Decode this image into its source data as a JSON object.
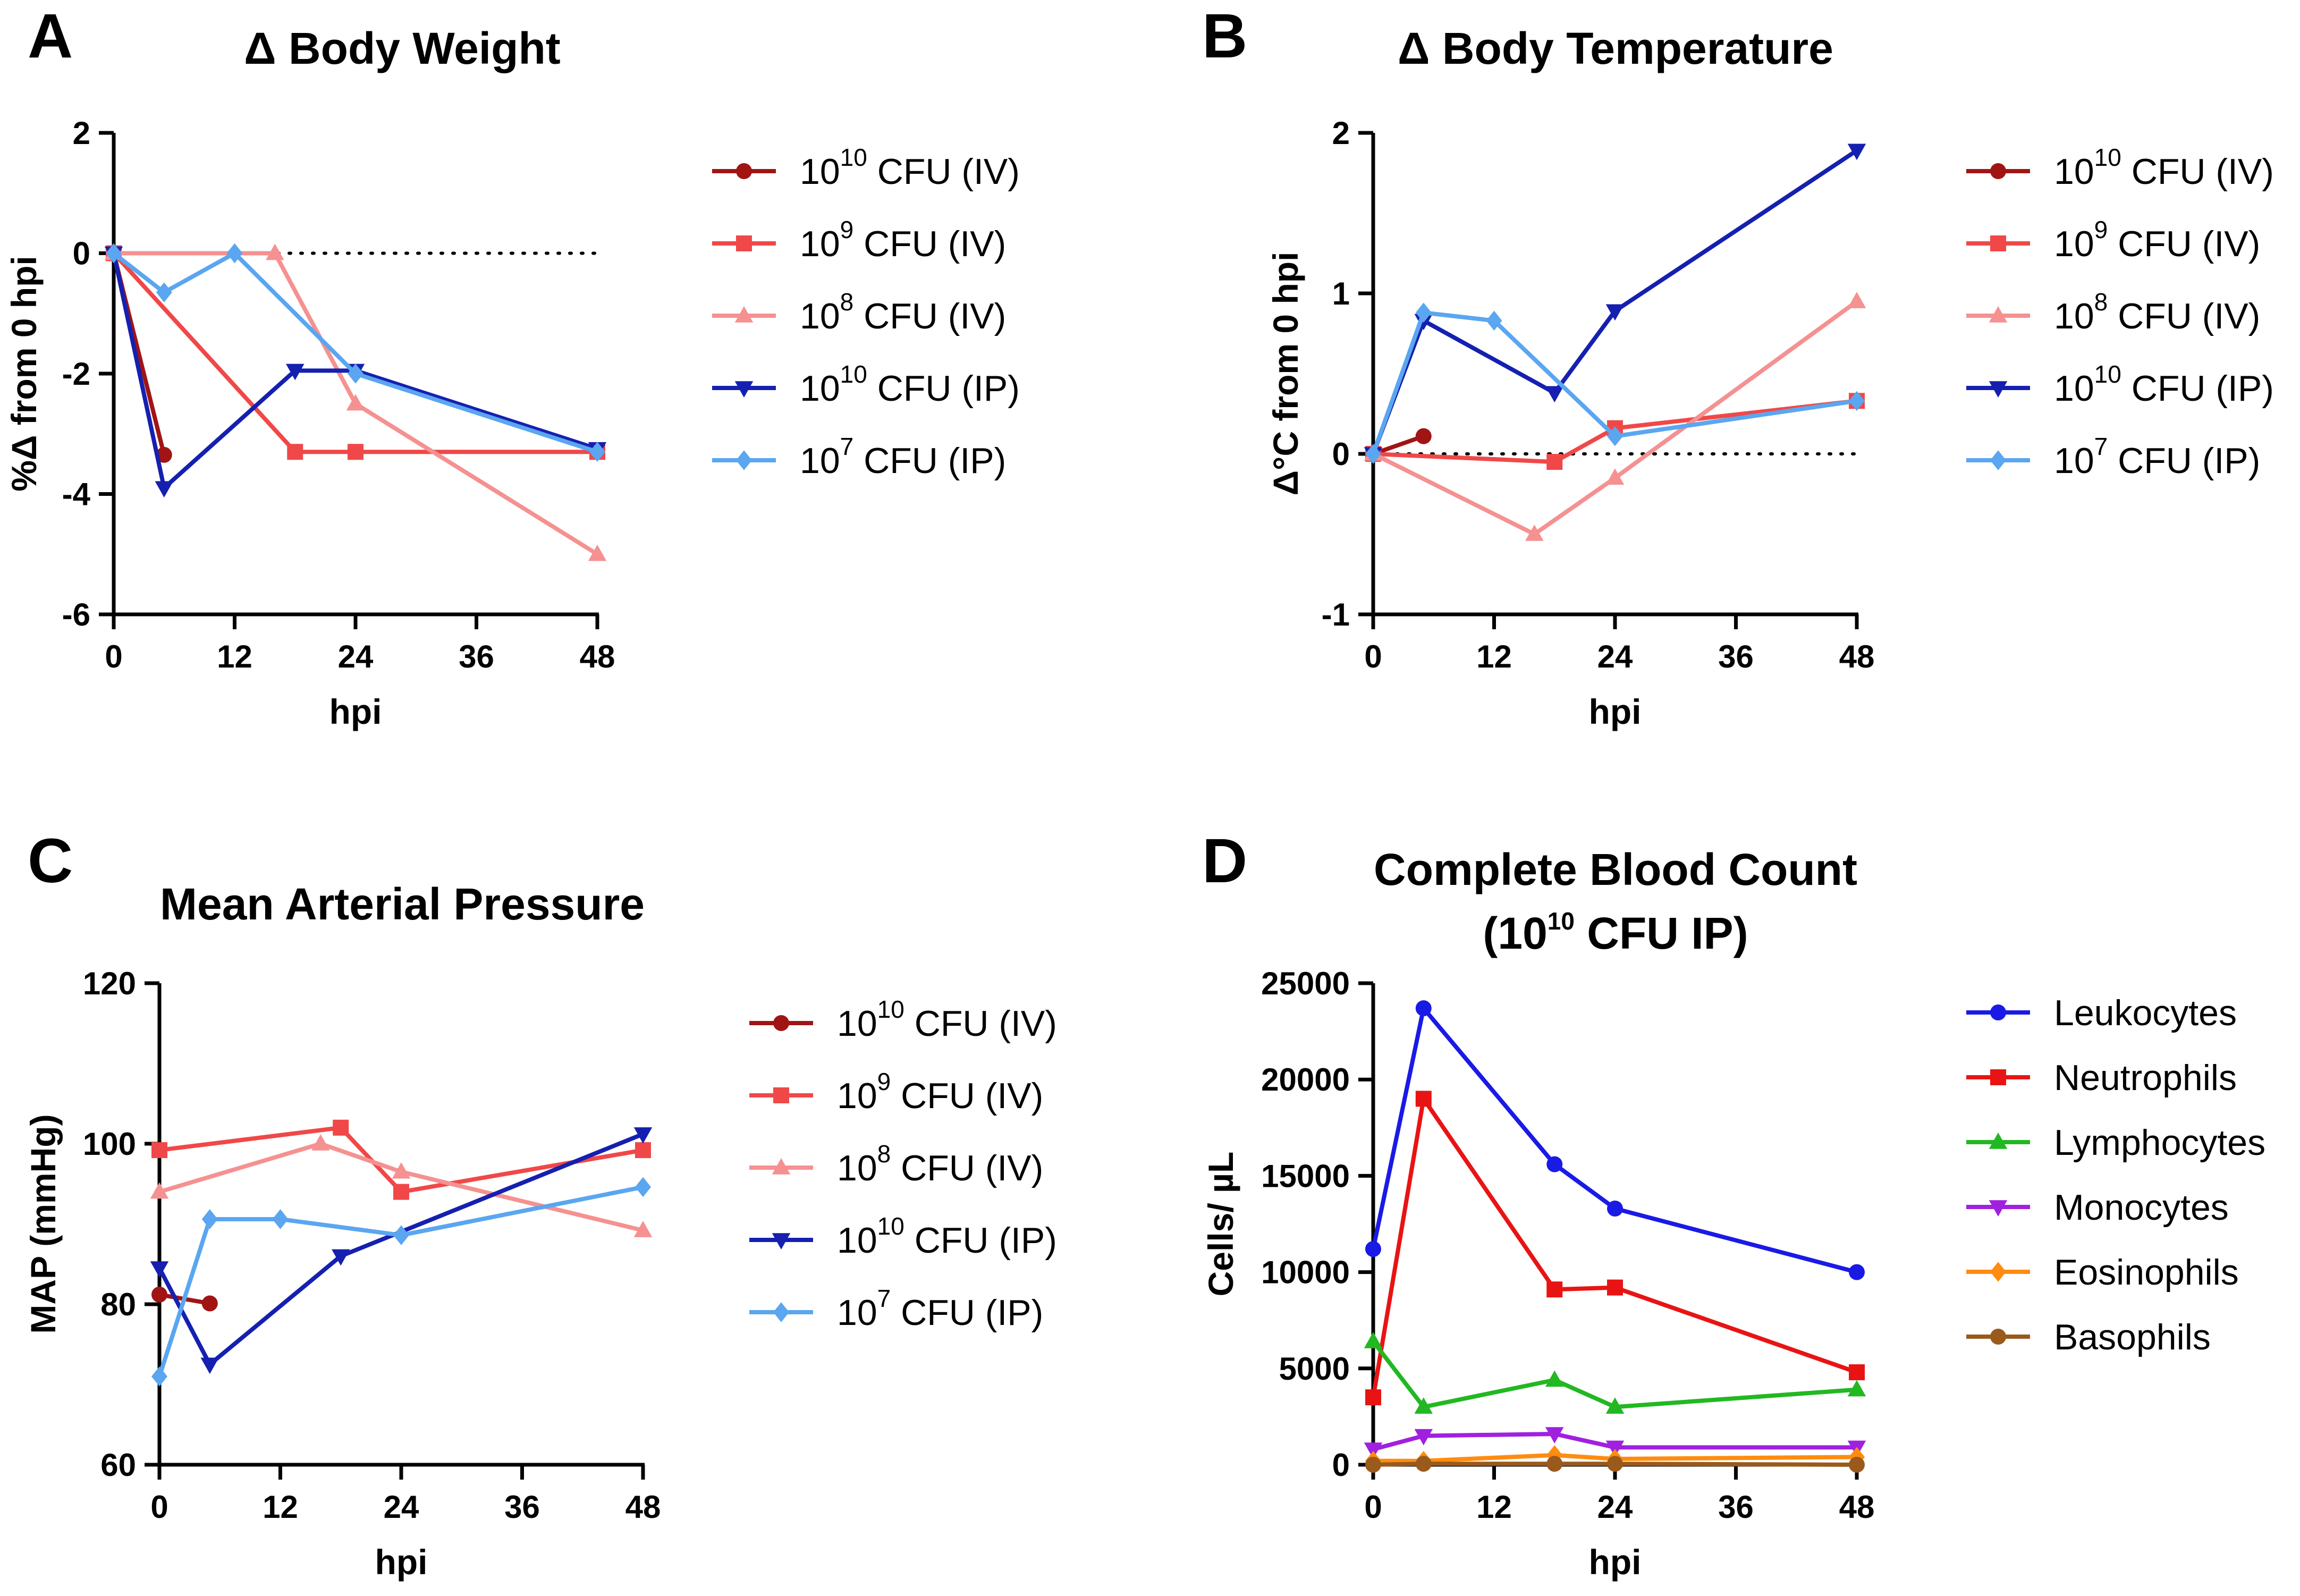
{
  "figure": {
    "panels": [
      "A",
      "B",
      "C",
      "D"
    ]
  },
  "chart_data": [
    {
      "panel": "A",
      "type": "line",
      "title": "Δ Body Weight",
      "xlabel": "hpi",
      "ylabel": "%Δ from 0 hpi",
      "xlim": [
        0,
        48
      ],
      "ylim": [
        -6,
        2
      ],
      "xticks": [
        0,
        12,
        24,
        36,
        48
      ],
      "yticks": [
        -6,
        -4,
        -2,
        0,
        2
      ],
      "reference_line": 0,
      "series": [
        {
          "name": "10^10 CFU (IV)",
          "base": "10",
          "exp": "10",
          "suffix": " CFU (IV)",
          "color": "#a11414",
          "marker": "circle",
          "points": [
            [
              0,
              0
            ],
            [
              5,
              -3.35
            ]
          ]
        },
        {
          "name": "10^9 CFU (IV)",
          "base": "10",
          "exp": "9",
          "suffix": " CFU (IV)",
          "color": "#f04848",
          "marker": "square",
          "points": [
            [
              0,
              0
            ],
            [
              18,
              -3.3
            ],
            [
              24,
              -3.3
            ],
            [
              48,
              -3.3
            ]
          ]
        },
        {
          "name": "10^8 CFU (IV)",
          "base": "10",
          "exp": "8",
          "suffix": " CFU (IV)",
          "color": "#f59191",
          "marker": "triangle-up",
          "points": [
            [
              0,
              0
            ],
            [
              16,
              0
            ],
            [
              24,
              -2.5
            ],
            [
              48,
              -5.0
            ]
          ]
        },
        {
          "name": "10^10 CFU (IP)",
          "base": "10",
          "exp": "10",
          "suffix": " CFU (IP)",
          "color": "#1520b0",
          "marker": "triangle-down",
          "points": [
            [
              0,
              0
            ],
            [
              5,
              -3.9
            ],
            [
              18,
              -1.95
            ],
            [
              24,
              -1.95
            ],
            [
              48,
              -3.25
            ]
          ]
        },
        {
          "name": "10^7 CFU (IP)",
          "base": "10",
          "exp": "7",
          "suffix": " CFU (IP)",
          "color": "#5aa6f0",
          "marker": "diamond",
          "points": [
            [
              0,
              0
            ],
            [
              5,
              -0.65
            ],
            [
              12,
              0
            ],
            [
              24,
              -2.0
            ],
            [
              48,
              -3.3
            ]
          ]
        }
      ]
    },
    {
      "panel": "B",
      "type": "line",
      "title": "Δ Body Temperature",
      "xlabel": "hpi",
      "ylabel": "Δ°C from 0 hpi",
      "xlim": [
        0,
        48
      ],
      "ylim": [
        -1,
        2
      ],
      "xticks": [
        0,
        12,
        24,
        36,
        48
      ],
      "yticks": [
        -1,
        0,
        1,
        2
      ],
      "reference_line": 0,
      "series": [
        {
          "name": "10^10 CFU (IV)",
          "base": "10",
          "exp": "10",
          "suffix": " CFU (IV)",
          "color": "#a11414",
          "marker": "circle",
          "points": [
            [
              0,
              0
            ],
            [
              5,
              0.11
            ]
          ]
        },
        {
          "name": "10^9 CFU (IV)",
          "base": "10",
          "exp": "9",
          "suffix": " CFU (IV)",
          "color": "#f04848",
          "marker": "square",
          "points": [
            [
              0,
              0
            ],
            [
              18,
              -0.05
            ],
            [
              24,
              0.16
            ],
            [
              48,
              0.33
            ]
          ]
        },
        {
          "name": "10^8 CFU (IV)",
          "base": "10",
          "exp": "8",
          "suffix": " CFU (IV)",
          "color": "#f59191",
          "marker": "triangle-up",
          "points": [
            [
              0,
              0
            ],
            [
              16,
              -0.5
            ],
            [
              24,
              -0.15
            ],
            [
              48,
              0.95
            ]
          ]
        },
        {
          "name": "10^10 CFU (IP)",
          "base": "10",
          "exp": "10",
          "suffix": " CFU (IP)",
          "color": "#1520b0",
          "marker": "triangle-down",
          "points": [
            [
              0,
              0
            ],
            [
              5,
              0.83
            ],
            [
              18,
              0.38
            ],
            [
              24,
              0.89
            ],
            [
              48,
              1.89
            ]
          ]
        },
        {
          "name": "10^7 CFU (IP)",
          "base": "10",
          "exp": "7",
          "suffix": " CFU (IP)",
          "color": "#5aa6f0",
          "marker": "diamond",
          "points": [
            [
              0,
              0
            ],
            [
              5,
              0.88
            ],
            [
              12,
              0.83
            ],
            [
              24,
              0.11
            ],
            [
              48,
              0.33
            ]
          ]
        }
      ]
    },
    {
      "panel": "C",
      "type": "line",
      "title": "Mean Arterial Pressure",
      "xlabel": "hpi",
      "ylabel": "MAP (mmHg)",
      "xlim": [
        0,
        48
      ],
      "ylim": [
        60,
        120
      ],
      "xticks": [
        0,
        12,
        24,
        36,
        48
      ],
      "yticks": [
        60,
        80,
        100,
        120
      ],
      "series": [
        {
          "name": "10^10 CFU (IV)",
          "base": "10",
          "exp": "10",
          "suffix": " CFU (IV)",
          "color": "#a11414",
          "marker": "circle",
          "points": [
            [
              0,
              81.2
            ],
            [
              5,
              80.1
            ]
          ]
        },
        {
          "name": "10^9 CFU (IV)",
          "base": "10",
          "exp": "9",
          "suffix": " CFU (IV)",
          "color": "#f04848",
          "marker": "square",
          "points": [
            [
              0,
              99.2
            ],
            [
              18,
              102
            ],
            [
              24,
              94
            ],
            [
              48,
              99.2
            ]
          ]
        },
        {
          "name": "10^8 CFU (IV)",
          "base": "10",
          "exp": "8",
          "suffix": " CFU (IV)",
          "color": "#f59191",
          "marker": "triangle-up",
          "points": [
            [
              0,
              94
            ],
            [
              16,
              100
            ],
            [
              24,
              96.5
            ],
            [
              48,
              89.2
            ]
          ]
        },
        {
          "name": "10^10 CFU (IP)",
          "base": "10",
          "exp": "10",
          "suffix": " CFU (IP)",
          "color": "#1520b0",
          "marker": "triangle-down",
          "points": [
            [
              0,
              84.5
            ],
            [
              5,
              72.5
            ],
            [
              18,
              86
            ],
            [
              48,
              101.2
            ]
          ]
        },
        {
          "name": "10^7 CFU (IP)",
          "base": "10",
          "exp": "7",
          "suffix": " CFU (IP)",
          "color": "#5aa6f0",
          "marker": "diamond",
          "points": [
            [
              0,
              71
            ],
            [
              5,
              90.6
            ],
            [
              12,
              90.6
            ],
            [
              24,
              88.6
            ],
            [
              48,
              94.6
            ]
          ]
        }
      ]
    },
    {
      "panel": "D",
      "type": "line",
      "title": "Complete Blood Count",
      "title_line2": {
        "open": "(",
        "base": "10",
        "exp": "10",
        "suffix": " CFU IP)"
      },
      "xlabel": "hpi",
      "ylabel": "Cells/ µL",
      "xlim": [
        0,
        48
      ],
      "ylim": [
        0,
        25000
      ],
      "xticks": [
        0,
        12,
        24,
        36,
        48
      ],
      "yticks": [
        0,
        5000,
        10000,
        15000,
        20000,
        25000
      ],
      "series": [
        {
          "name": "Leukocytes",
          "color": "#1a1ae6",
          "marker": "circle",
          "points": [
            [
              0,
              11200
            ],
            [
              5,
              23700
            ],
            [
              18,
              15600
            ],
            [
              24,
              13300
            ],
            [
              48,
              10000
            ]
          ]
        },
        {
          "name": "Neutrophils",
          "color": "#e81414",
          "marker": "square",
          "points": [
            [
              0,
              3500
            ],
            [
              5,
              19000
            ],
            [
              18,
              9100
            ],
            [
              24,
              9200
            ],
            [
              48,
              4800
            ]
          ]
        },
        {
          "name": "Lymphocytes",
          "color": "#22b822",
          "marker": "triangle-up",
          "points": [
            [
              0,
              6400
            ],
            [
              5,
              3000
            ],
            [
              18,
              4400
            ],
            [
              24,
              3000
            ],
            [
              48,
              3900
            ]
          ]
        },
        {
          "name": "Monocytes",
          "color": "#a020e0",
          "marker": "triangle-down",
          "points": [
            [
              0,
              800
            ],
            [
              5,
              1500
            ],
            [
              18,
              1600
            ],
            [
              24,
              900
            ],
            [
              48,
              900
            ]
          ]
        },
        {
          "name": "Eosinophils",
          "color": "#ff8c10",
          "marker": "diamond",
          "points": [
            [
              0,
              200
            ],
            [
              5,
              200
            ],
            [
              18,
              500
            ],
            [
              24,
              300
            ],
            [
              48,
              400
            ]
          ]
        },
        {
          "name": "Basophils",
          "color": "#9a5a1c",
          "marker": "circle",
          "points": [
            [
              0,
              0
            ],
            [
              5,
              50
            ],
            [
              18,
              50
            ],
            [
              24,
              50
            ],
            [
              48,
              0
            ]
          ]
        }
      ]
    }
  ]
}
